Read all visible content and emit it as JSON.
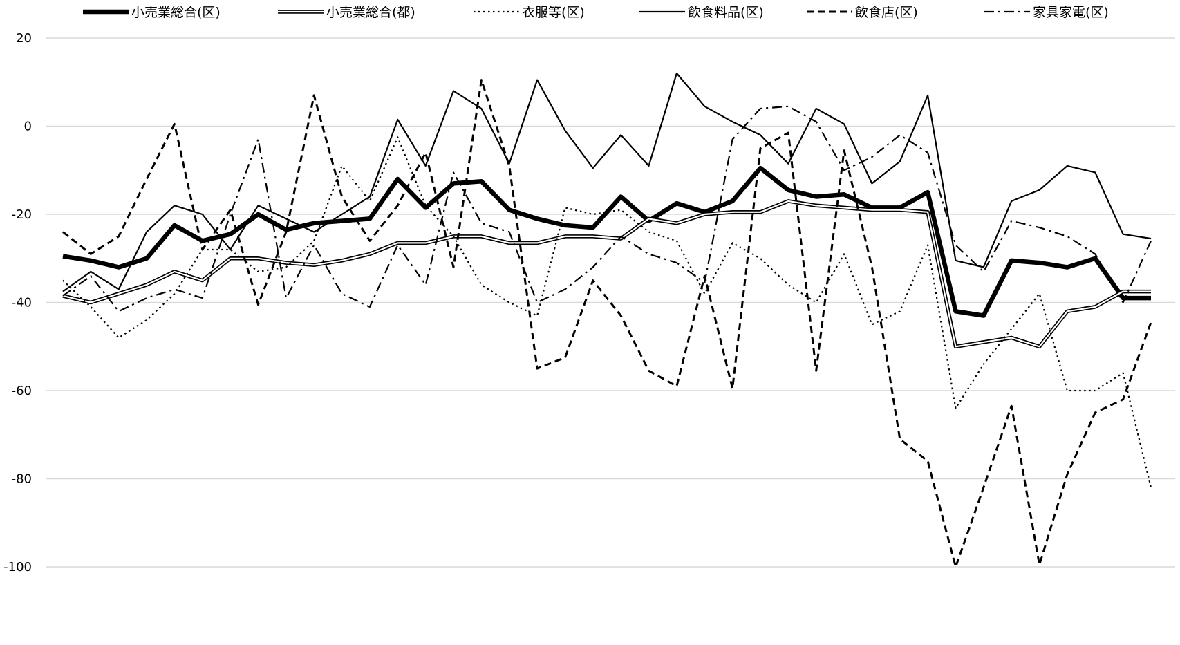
{
  "chart_data": {
    "type": "line",
    "title": "",
    "xlabel": "",
    "ylabel": "",
    "ylim": [
      -100,
      20
    ],
    "yticks": [
      20,
      0,
      -20,
      -40,
      -60,
      -80,
      -100
    ],
    "grid": true,
    "legend_position": "top",
    "x": [
      1,
      2,
      3,
      4,
      5,
      6,
      7,
      8,
      9,
      10,
      11,
      12,
      13,
      14,
      15,
      16,
      17,
      18,
      19,
      20,
      21,
      22,
      23,
      24,
      25,
      26,
      27,
      28,
      29,
      30,
      31,
      32,
      33,
      34,
      35,
      36,
      37,
      38,
      39,
      40
    ],
    "series": [
      {
        "name": "小売業総合(区)",
        "style": "thick",
        "values": [
          -29.5,
          -30.5,
          -32,
          -30,
          -22.5,
          -26,
          -24.5,
          -20,
          -23.5,
          -22,
          -21.5,
          -21,
          -12,
          -18.5,
          -13,
          -12.5,
          -19,
          -21,
          -22.5,
          -23,
          -16,
          -21.5,
          -17.5,
          -19.5,
          -17,
          -9.5,
          -14.5,
          -16,
          -15.5,
          -18.5,
          -18.5,
          -15,
          -42,
          -43,
          -30.5,
          -31,
          -32,
          -30,
          -39,
          -39
        ]
      },
      {
        "name": "小売業総合(都)",
        "style": "double",
        "values": [
          -38.5,
          -40,
          -38,
          -36,
          -33,
          -35,
          -30,
          -30,
          -31,
          -31.5,
          -30.5,
          -29,
          -26.5,
          -26.5,
          -25,
          -25,
          -26.5,
          -26.5,
          -25,
          -25,
          -25.5,
          -21,
          -22,
          -20,
          -19.5,
          -19.5,
          -17,
          -18,
          -18.5,
          -19,
          -19,
          -19.5,
          -50,
          -49,
          -48,
          -50,
          -42,
          -41,
          -37.5,
          -37.5
        ]
      },
      {
        "name": "衣服等(区)",
        "style": "dotted",
        "values": [
          -35,
          -41,
          -48,
          -44,
          -38,
          -28,
          -28,
          -33,
          -32,
          -26,
          -9,
          -17,
          -2.5,
          -18,
          -25,
          -36,
          -40,
          -43,
          -18.5,
          -20,
          -19,
          -24,
          -26,
          -38,
          -26.5,
          -30,
          -36,
          -40,
          -29,
          -45,
          -42,
          -27,
          -64,
          -54,
          -46,
          -38,
          -60,
          -60,
          -56,
          -82
        ]
      },
      {
        "name": "飲食料品(区)",
        "style": "solid",
        "values": [
          -37.5,
          -33,
          -37,
          -24,
          -18,
          -20,
          -28,
          -18,
          -21,
          -24,
          -20,
          -16,
          1.5,
          -9,
          8,
          4,
          -8.5,
          10.5,
          -1,
          -9.5,
          -2,
          -9,
          12,
          4.5,
          1,
          -2,
          -8.5,
          4,
          0.5,
          -13,
          -8,
          7,
          -30.5,
          -32,
          -17,
          -14.5,
          -9,
          -10.5,
          -24.5,
          -25.5
        ]
      },
      {
        "name": "飲食店(区)",
        "style": "dashed",
        "values": [
          -24,
          -29,
          -25,
          -12,
          0.5,
          -28,
          -19,
          -40.5,
          -24,
          7,
          -16,
          -26,
          -18,
          -6,
          -32,
          10.5,
          -9,
          -55,
          -52.5,
          -35,
          -43,
          -55.5,
          -59,
          -34,
          -59.5,
          -5,
          -1.5,
          -55.5,
          -5.5,
          -32,
          -71,
          -76,
          -100,
          -82,
          -63.5,
          -99.5,
          -79,
          -65,
          -62,
          -44.5
        ]
      },
      {
        "name": "家具家電(区)",
        "style": "dashdot",
        "values": [
          -38.5,
          -34,
          -42,
          -39,
          -37,
          -39,
          -20,
          -3,
          -39,
          -27,
          -38,
          -41,
          -27,
          -36,
          -10.5,
          -22,
          -24,
          -40,
          -37,
          -32,
          -25,
          -29,
          -31,
          -35.5,
          -3,
          4,
          4.5,
          1,
          -10,
          -7,
          -2,
          -6,
          -27,
          -33,
          -21.5,
          -23,
          -25,
          -29,
          -40,
          -26
        ]
      }
    ]
  }
}
